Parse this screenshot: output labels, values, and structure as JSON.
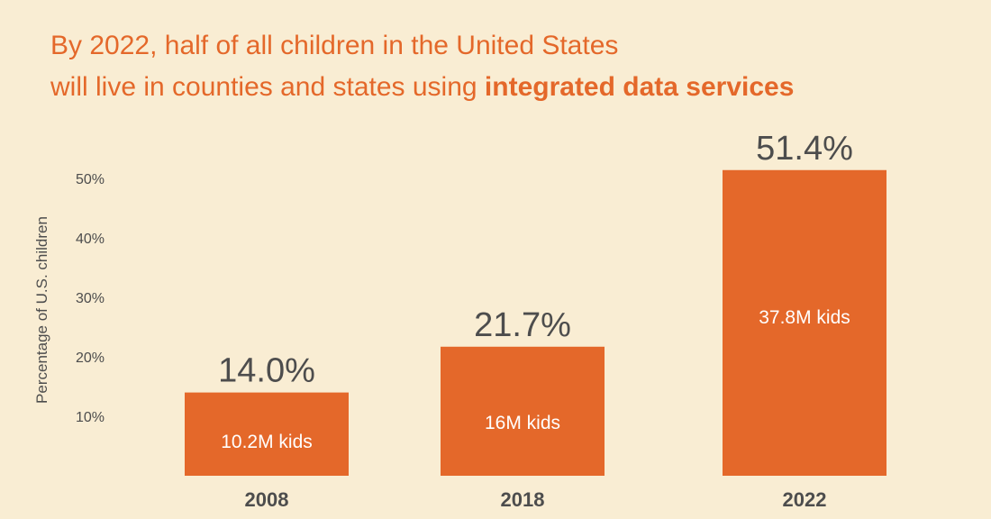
{
  "header": {
    "title_line1": "By 2022, half of all children in the United States",
    "title_line2_prefix": "will live in counties and states using ",
    "title_line2_bold": "integrated data services"
  },
  "colors": {
    "background": "#f9edd3",
    "accent": "#e4682a",
    "text_dark": "#4d4d4d",
    "bar_text": "#ffffff"
  },
  "chart_data": {
    "type": "bar",
    "ylabel": "Percentage of U.S. children",
    "xlabel": "",
    "categories": [
      "2008",
      "2018",
      "2022"
    ],
    "values": [
      14.0,
      21.7,
      51.4
    ],
    "value_labels": [
      "14.0%",
      "21.7%",
      "51.4%"
    ],
    "bar_labels": [
      "10.2M kids",
      "16M kids",
      "37.8M kids"
    ],
    "y_ticks": [
      10,
      20,
      30,
      40,
      50
    ],
    "y_tick_labels": [
      "10%",
      "20%",
      "30%",
      "40%",
      "50%"
    ],
    "ylim": [
      0,
      51.4
    ],
    "grid": false,
    "legend": "none"
  }
}
